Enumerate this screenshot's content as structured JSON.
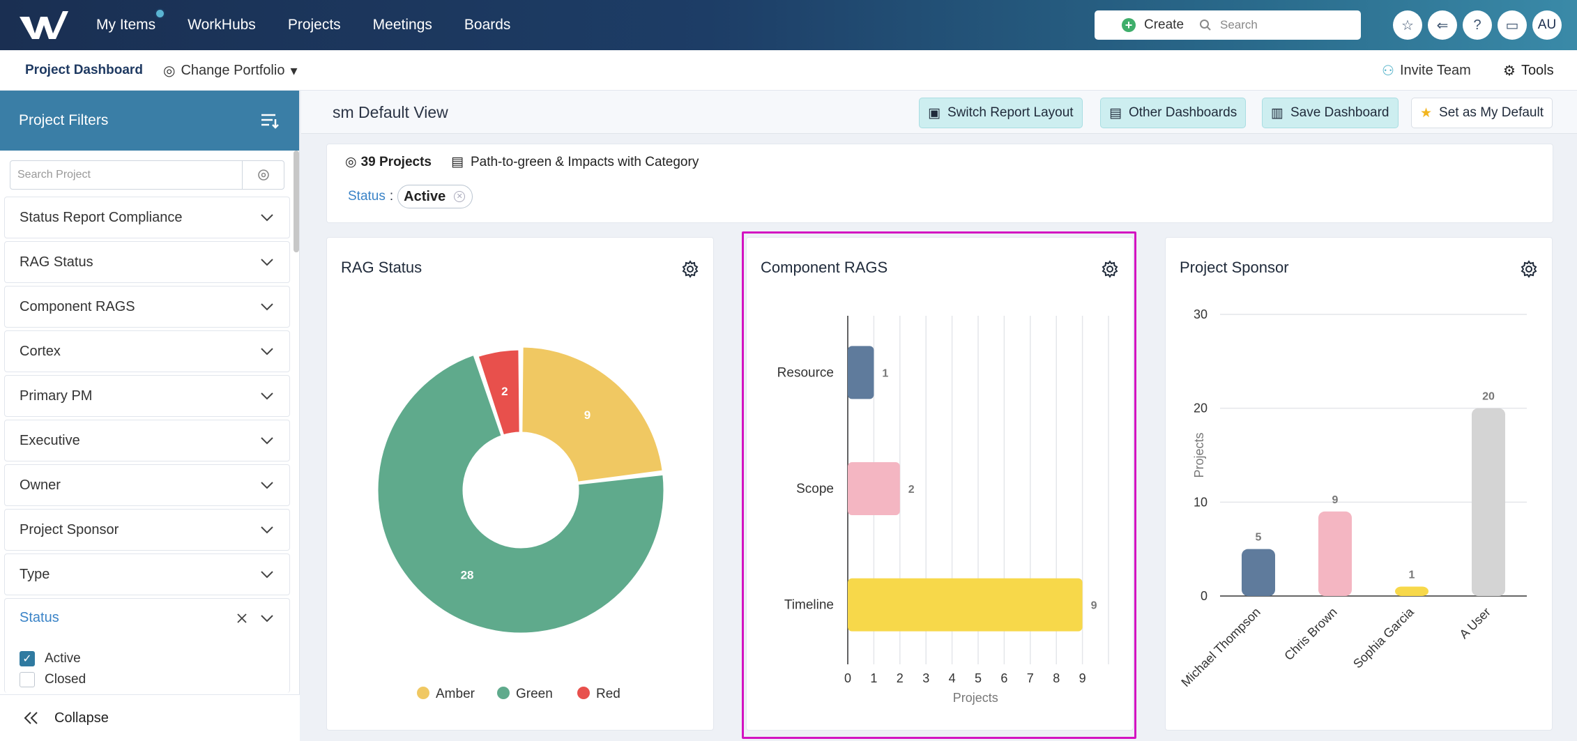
{
  "topnav": {
    "links": [
      "My Items",
      "WorkHubs",
      "Projects",
      "Meetings",
      "Boards"
    ],
    "create_label": "Create",
    "search_placeholder": "Search",
    "avatar_initials": "AU"
  },
  "subbar": {
    "dashboard_label": "Project Dashboard",
    "portfolio_label": "Change Portfolio",
    "invite_label": "Invite Team",
    "tools_label": "Tools"
  },
  "sidebar": {
    "title": "Project Filters",
    "search_placeholder": "Search Project",
    "filters": [
      "Status Report Compliance",
      "RAG Status",
      "Component RAGS",
      "Cortex",
      "Primary PM",
      "Executive",
      "Owner",
      "Project Sponsor",
      "Type"
    ],
    "status_filter": {
      "label": "Status",
      "options": [
        {
          "label": "Active",
          "checked": true
        },
        {
          "label": "Closed",
          "checked": false
        }
      ]
    },
    "collapse_label": "Collapse"
  },
  "viewbar": {
    "title": "sm Default View",
    "buttons": {
      "switch_layout": "Switch Report Layout",
      "other_dashboards": "Other Dashboards",
      "save_dashboard": "Save Dashboard",
      "set_default": "Set as My Default"
    }
  },
  "info": {
    "projects_count": "39 Projects",
    "report_name": "Path-to-green & Impacts with Category",
    "status_key": "Status",
    "status_value": "Active"
  },
  "colors": {
    "amber": "#f0c862",
    "green": "#5faa8c",
    "red": "#e8504c",
    "slate": "#5f7b9c",
    "pink": "#f4b6c2",
    "yellow": "#f7d84a",
    "gray": "#d4d4d4",
    "highlight": "#d313c1"
  },
  "cards": {
    "rag": {
      "title": "RAG Status"
    },
    "component": {
      "title": "Component RAGS"
    },
    "sponsor": {
      "title": "Project Sponsor"
    }
  },
  "chart_data": [
    {
      "type": "pie",
      "title": "RAG Status",
      "categories": [
        "Amber",
        "Green",
        "Red"
      ],
      "values": [
        9,
        28,
        2
      ],
      "legend": "bottom"
    },
    {
      "type": "bar",
      "orientation": "horizontal",
      "title": "Component RAGS",
      "categories": [
        "Resource",
        "Scope",
        "Timeline"
      ],
      "values": [
        1,
        2,
        9
      ],
      "xlabel": "Projects",
      "xlim": [
        0,
        10
      ],
      "xticks": [
        0,
        1,
        2,
        3,
        4,
        5,
        6,
        7,
        8,
        9
      ],
      "grid": true
    },
    {
      "type": "bar",
      "title": "Project Sponsor",
      "categories": [
        "Michael Thompson",
        "Chris Brown",
        "Sophia Garcia",
        "A User"
      ],
      "values": [
        5,
        9,
        1,
        20
      ],
      "ylabel": "Projects",
      "ylim": [
        0,
        30
      ],
      "yticks": [
        0,
        10,
        20,
        30
      ],
      "grid": true
    }
  ]
}
